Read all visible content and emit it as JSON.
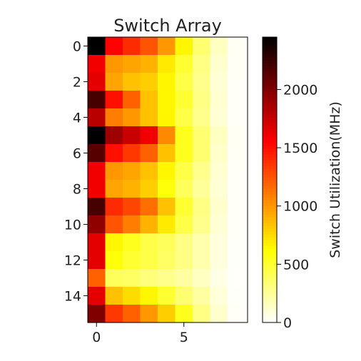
{
  "chart_data": {
    "type": "heatmap",
    "title": "Switch Array",
    "xlabel": "",
    "ylabel": "",
    "colorbar_label": "Switch Utilization(MHz)",
    "colormap": "hot_r",
    "color_range": [
      0,
      2450
    ],
    "x_ticks": [
      0,
      5
    ],
    "y_ticks": [
      0,
      2,
      4,
      6,
      8,
      10,
      12,
      14
    ],
    "colorbar_ticks": [
      0,
      500,
      1000,
      1500,
      2000
    ],
    "grid": false,
    "legend": "none",
    "rows": 16,
    "cols": 9,
    "values": [
      [
        2450,
        1550,
        1400,
        1250,
        1000,
        650,
        350,
        150,
        30
      ],
      [
        1600,
        1000,
        950,
        900,
        700,
        500,
        300,
        120,
        25
      ],
      [
        1650,
        950,
        850,
        800,
        650,
        450,
        280,
        100,
        20
      ],
      [
        2200,
        1500,
        1200,
        850,
        650,
        500,
        300,
        110,
        20
      ],
      [
        1800,
        1100,
        1000,
        850,
        650,
        450,
        280,
        100,
        20
      ],
      [
        2450,
        1900,
        1750,
        1600,
        1050,
        550,
        350,
        150,
        30
      ],
      [
        2150,
        1500,
        1350,
        1200,
        850,
        550,
        350,
        130,
        25
      ],
      [
        1600,
        1000,
        950,
        850,
        650,
        450,
        280,
        110,
        20
      ],
      [
        1600,
        950,
        900,
        800,
        600,
        400,
        250,
        100,
        20
      ],
      [
        2200,
        1400,
        1300,
        1150,
        850,
        500,
        300,
        120,
        20
      ],
      [
        1950,
        1250,
        1100,
        900,
        700,
        450,
        280,
        100,
        20
      ],
      [
        1650,
        650,
        550,
        450,
        400,
        300,
        200,
        80,
        15
      ],
      [
        1650,
        600,
        500,
        450,
        380,
        300,
        200,
        80,
        15
      ],
      [
        1200,
        400,
        380,
        320,
        280,
        230,
        150,
        60,
        10
      ],
      [
        1650,
        850,
        750,
        650,
        500,
        350,
        230,
        90,
        15
      ],
      [
        2000,
        1350,
        1200,
        1000,
        800,
        550,
        300,
        120,
        20
      ]
    ]
  }
}
